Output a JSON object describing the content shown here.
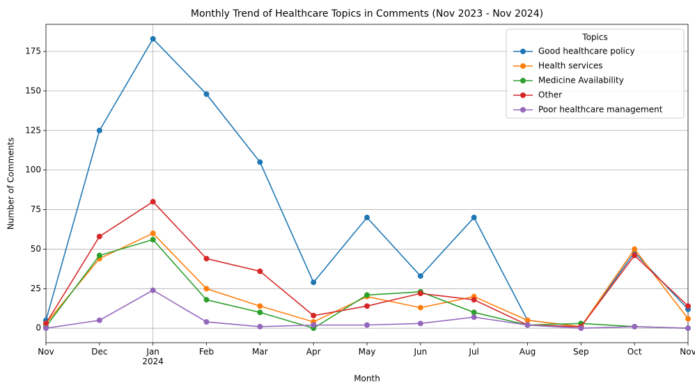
{
  "chart_data": {
    "type": "line",
    "title": "Monthly Trend of Healthcare Topics in Comments (Nov 2023 - Nov 2024)",
    "x_label": "Month",
    "y_label": "Number of Comments",
    "legend_title": "Topics",
    "legend": "upper right",
    "categories": [
      "Nov",
      "Dec",
      "Jan\n2024",
      "Feb",
      "Mar",
      "Apr",
      "May",
      "Jun",
      "Jul",
      "Aug",
      "Sep",
      "Oct",
      "Nov"
    ],
    "ylim": [
      -9.15,
      192.15
    ],
    "yticks": [
      0,
      25,
      50,
      75,
      100,
      125,
      150,
      175
    ],
    "grid": true,
    "series": [
      {
        "name": "Good healthcare policy",
        "color": "#1f77b4",
        "values": [
          5,
          125,
          183,
          148,
          105,
          29,
          70,
          33,
          70,
          5,
          1,
          48,
          12
        ]
      },
      {
        "name": "Health services",
        "color": "#ff7f0e",
        "values": [
          3,
          44,
          60,
          25,
          14,
          4,
          20,
          13,
          20,
          5,
          1,
          50,
          6
        ]
      },
      {
        "name": "Medicine Availability",
        "color": "#2ca02c",
        "values": [
          1,
          46,
          56,
          18,
          10,
          0,
          21,
          23,
          10,
          2,
          3,
          1,
          0
        ]
      },
      {
        "name": "Other",
        "color": "#d62728",
        "values": [
          3,
          58,
          80,
          44,
          36,
          8,
          14,
          22,
          18,
          2,
          1,
          46,
          14
        ]
      },
      {
        "name": "Poor healthcare management",
        "color": "#9467bd",
        "values": [
          0,
          5,
          24,
          4,
          1,
          2,
          2,
          3,
          7,
          2,
          0,
          1,
          0
        ]
      }
    ]
  }
}
